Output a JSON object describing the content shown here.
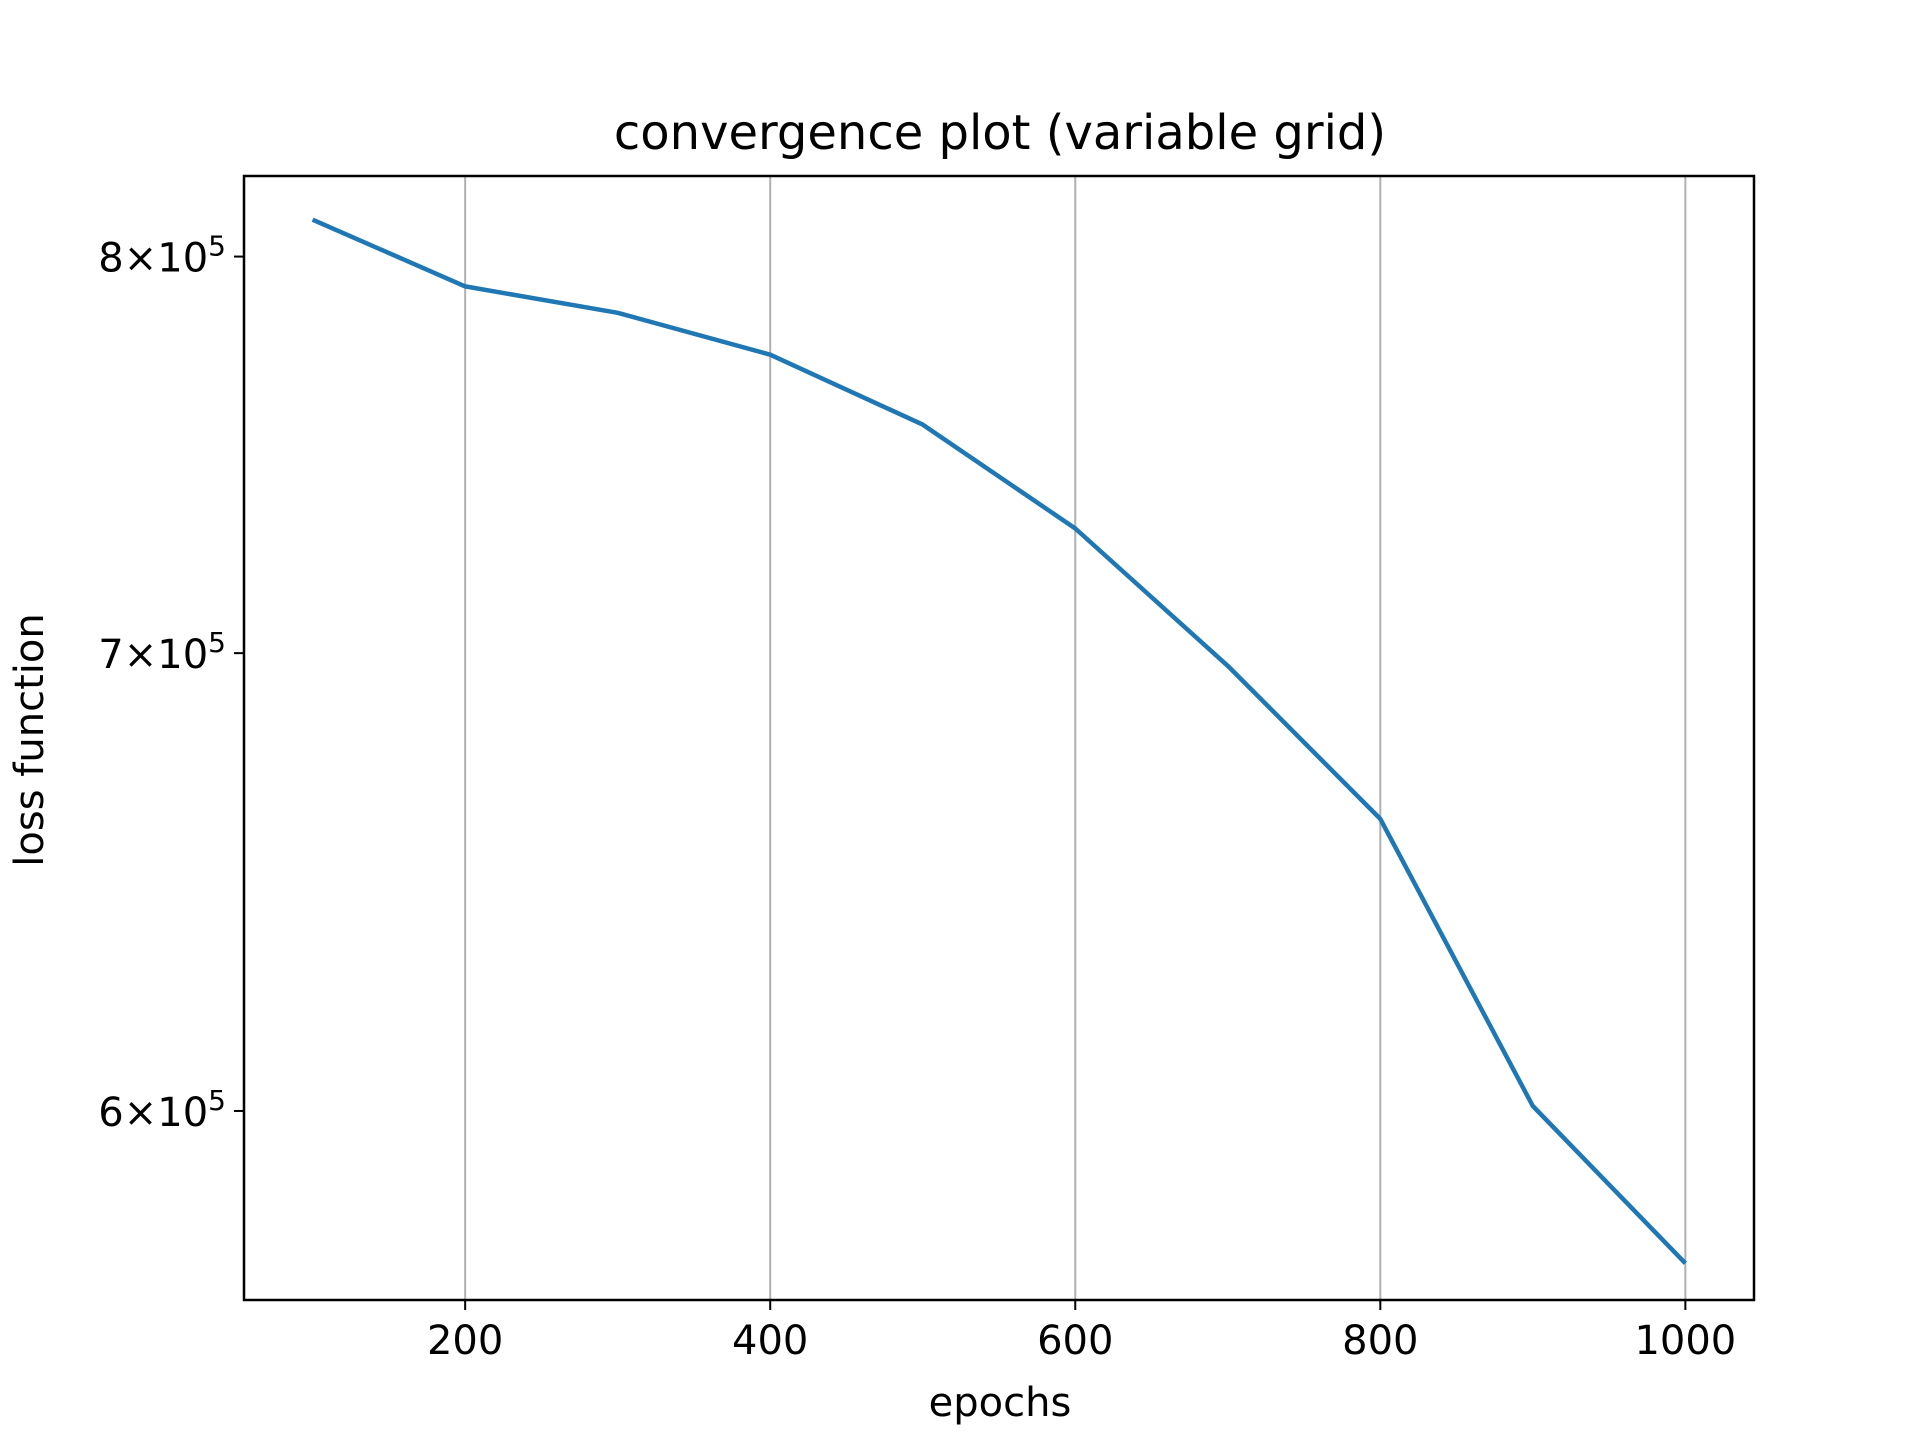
{
  "chart_data": {
    "type": "line",
    "title": "convergence plot (variable grid)",
    "xlabel": "epochs",
    "ylabel": "loss function",
    "xlim": [
      55,
      1045
    ],
    "ylim": [
      563000,
      822000
    ],
    "yscale": "log",
    "grid": "x-axis only",
    "legend": "none",
    "x_ticks": [
      {
        "value": 200,
        "label": "200"
      },
      {
        "value": 400,
        "label": "400"
      },
      {
        "value": 600,
        "label": "600"
      },
      {
        "value": 800,
        "label": "800"
      },
      {
        "value": 1000,
        "label": "1000"
      }
    ],
    "y_ticks": [
      {
        "value": 600000,
        "mantissa": "6",
        "times": "×",
        "base": "10",
        "exponent": "5"
      },
      {
        "value": 700000,
        "mantissa": "7",
        "times": "×",
        "base": "10",
        "exponent": "5"
      },
      {
        "value": 800000,
        "mantissa": "8",
        "times": "×",
        "base": "10",
        "exponent": "5"
      }
    ],
    "series": [
      {
        "color": "#1f77b4",
        "x": [
          100,
          200,
          300,
          400,
          500,
          600,
          700,
          800,
          900,
          1000
        ],
        "y": [
          810000,
          792000,
          785000,
          774000,
          756000,
          730000,
          697000,
          662000,
          601000,
          570000
        ]
      }
    ]
  }
}
